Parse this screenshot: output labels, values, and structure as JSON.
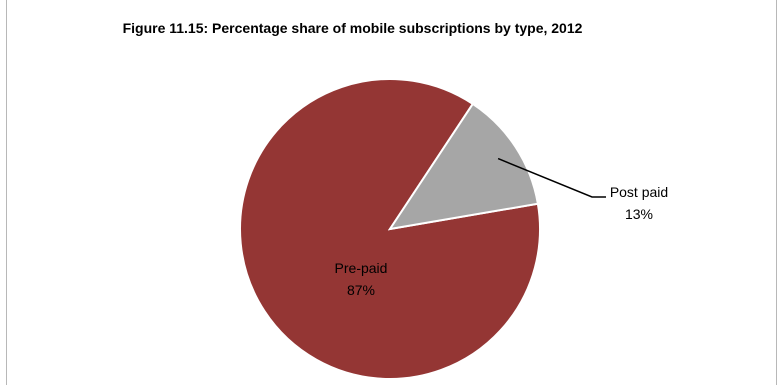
{
  "chart_data": {
    "type": "pie",
    "title": "Figure 11.15: Percentage share of mobile subscriptions by type, 2012",
    "categories": [
      "Pre-paid",
      "Post paid"
    ],
    "values": [
      87,
      13
    ],
    "value_labels": [
      "87%",
      "13%"
    ],
    "colors": {
      "Pre-paid": "#943634",
      "Post paid": "#a6a6a6"
    },
    "label_colors": {
      "Pre-paid": "#000000",
      "Post paid": "#000000"
    },
    "legend": "none"
  }
}
